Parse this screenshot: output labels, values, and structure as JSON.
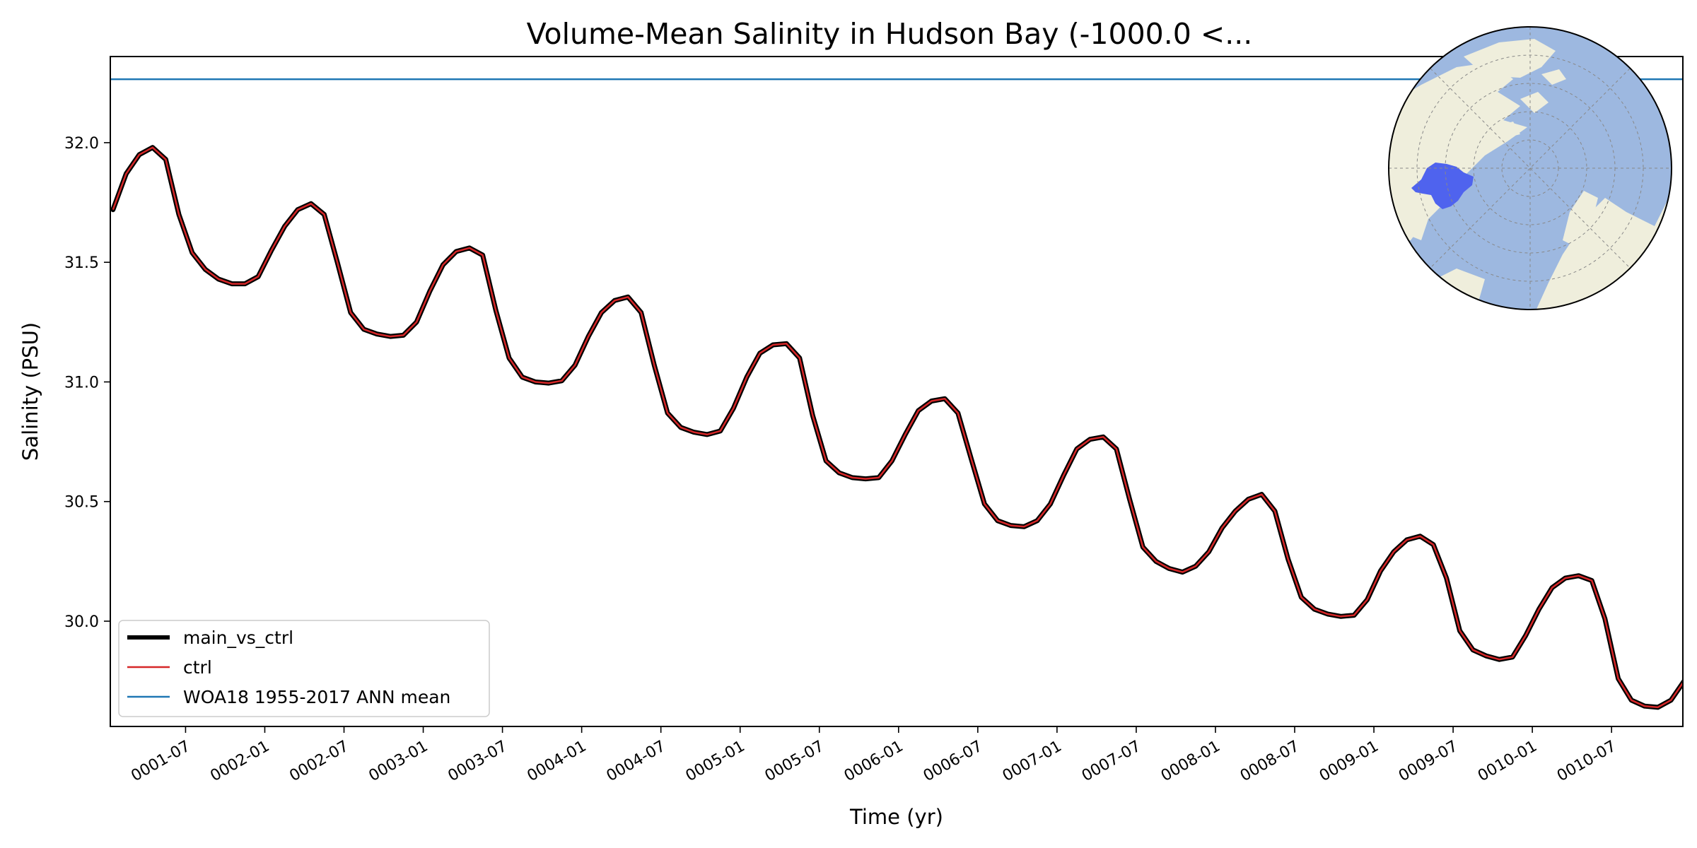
{
  "chart_data": {
    "type": "line",
    "title": "Volume-Mean Salinity in Hudson Bay (-1000.0 <...",
    "xlabel": "Time (yr)",
    "ylabel": "Salinity (PSU)",
    "xlim": [
      0.9,
      10.825
    ],
    "ylim": [
      29.56,
      32.36
    ],
    "xticks": [
      {
        "label": "0001-07",
        "x": 1.375
      },
      {
        "label": "0002-01",
        "x": 1.875
      },
      {
        "label": "0002-07",
        "x": 2.375
      },
      {
        "label": "0003-01",
        "x": 2.875
      },
      {
        "label": "0003-07",
        "x": 3.375
      },
      {
        "label": "0004-01",
        "x": 3.875
      },
      {
        "label": "0004-07",
        "x": 4.375
      },
      {
        "label": "0005-01",
        "x": 4.875
      },
      {
        "label": "0005-07",
        "x": 5.375
      },
      {
        "label": "0006-01",
        "x": 5.875
      },
      {
        "label": "0006-07",
        "x": 6.375
      },
      {
        "label": "0007-01",
        "x": 6.875
      },
      {
        "label": "0007-07",
        "x": 7.375
      },
      {
        "label": "0008-01",
        "x": 7.875
      },
      {
        "label": "0008-07",
        "x": 8.375
      },
      {
        "label": "0009-01",
        "x": 8.875
      },
      {
        "label": "0009-07",
        "x": 9.375
      },
      {
        "label": "0010-01",
        "x": 9.875
      },
      {
        "label": "0010-07",
        "x": 10.375
      }
    ],
    "yticks": [
      "30.0",
      "30.5",
      "31.0",
      "31.5",
      "32.0"
    ],
    "grid": false,
    "legend": {
      "placement": "lower-left",
      "entries": [
        {
          "label": "main_vs_ctrl",
          "color": "#000000"
        },
        {
          "label": "ctrl",
          "color": "#d62728"
        },
        {
          "label": "WOA18 1955-2017 ANN mean",
          "color": "#1f77b4"
        }
      ]
    },
    "series": [
      {
        "name": "main_vs_ctrl",
        "color": "#000000",
        "x": [
          0.917,
          1.0,
          1.083,
          1.167,
          1.25,
          1.333,
          1.417,
          1.5,
          1.583,
          1.667,
          1.75,
          1.833,
          1.917,
          2.0,
          2.083,
          2.167,
          2.25,
          2.333,
          2.417,
          2.5,
          2.583,
          2.667,
          2.75,
          2.833,
          2.917,
          3.0,
          3.083,
          3.167,
          3.25,
          3.333,
          3.417,
          3.5,
          3.583,
          3.667,
          3.75,
          3.833,
          3.917,
          4.0,
          4.083,
          4.167,
          4.25,
          4.333,
          4.417,
          4.5,
          4.583,
          4.667,
          4.75,
          4.833,
          4.917,
          5.0,
          5.083,
          5.167,
          5.25,
          5.333,
          5.417,
          5.5,
          5.583,
          5.667,
          5.75,
          5.833,
          5.917,
          6.0,
          6.083,
          6.167,
          6.25,
          6.333,
          6.417,
          6.5,
          6.583,
          6.667,
          6.75,
          6.833,
          6.917,
          7.0,
          7.083,
          7.167,
          7.25,
          7.333,
          7.417,
          7.5,
          7.583,
          7.667,
          7.75,
          7.833,
          7.917,
          8.0,
          8.083,
          8.167,
          8.25,
          8.333,
          8.417,
          8.5,
          8.583,
          8.667,
          8.75,
          8.833,
          8.917,
          9.0,
          9.083,
          9.167,
          9.25,
          9.333,
          9.417,
          9.5,
          9.583,
          9.667,
          9.75,
          9.833,
          9.917,
          10.0,
          10.083,
          10.167,
          10.25,
          10.333,
          10.417,
          10.5,
          10.583,
          10.667,
          10.75,
          10.833
        ],
        "y": [
          31.72,
          31.87,
          31.95,
          31.98,
          31.93,
          31.7,
          31.54,
          31.47,
          31.43,
          31.41,
          31.41,
          31.44,
          31.55,
          31.65,
          31.72,
          31.745,
          31.7,
          31.5,
          31.29,
          31.22,
          31.2,
          31.19,
          31.195,
          31.25,
          31.38,
          31.49,
          31.545,
          31.56,
          31.53,
          31.3,
          31.1,
          31.02,
          31.0,
          30.995,
          31.005,
          31.07,
          31.19,
          31.29,
          31.34,
          31.355,
          31.29,
          31.07,
          30.87,
          30.81,
          30.79,
          30.78,
          30.795,
          30.89,
          31.02,
          31.12,
          31.155,
          31.16,
          31.1,
          30.86,
          30.67,
          30.62,
          30.6,
          30.595,
          30.6,
          30.67,
          30.78,
          30.88,
          30.92,
          30.93,
          30.87,
          30.68,
          30.49,
          30.42,
          30.4,
          30.395,
          30.42,
          30.49,
          30.61,
          30.72,
          30.76,
          30.77,
          30.72,
          30.51,
          30.31,
          30.25,
          30.22,
          30.205,
          30.23,
          30.29,
          30.39,
          30.46,
          30.51,
          30.53,
          30.46,
          30.26,
          30.1,
          30.05,
          30.03,
          30.02,
          30.025,
          30.09,
          30.21,
          30.29,
          30.34,
          30.355,
          30.32,
          30.18,
          29.96,
          29.88,
          29.855,
          29.84,
          29.85,
          29.94,
          30.05,
          30.14,
          30.18,
          30.19,
          30.17,
          30.01,
          29.76,
          29.67,
          29.645,
          29.64,
          29.67,
          29.75
        ]
      },
      {
        "name": "ctrl",
        "color": "#d62728",
        "same_as": "main_vs_ctrl"
      },
      {
        "name": "WOA18 1955-2017 ANN mean",
        "color": "#1f77b4",
        "constant": 32.265
      }
    ],
    "inset_map": {
      "projection": "north-polar-stereographic",
      "ocean_color": "#9db8e0",
      "land_color": "#efeedc",
      "region_color": "#4f63ee",
      "region": "Hudson Bay"
    }
  }
}
